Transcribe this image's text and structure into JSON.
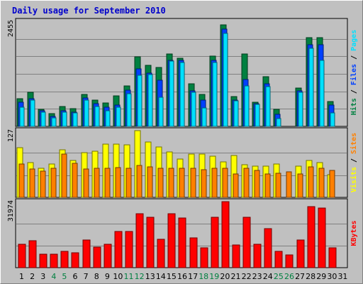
{
  "colors": {
    "background": "#C0C0C0",
    "title": "#0000CC",
    "hits": "#008040",
    "files": "#0040FF",
    "pages": "#00E0FF",
    "visits": "#FFFF00",
    "sites": "#FF8000",
    "kbytes": "#FF0000",
    "weekday_label": "#000000",
    "weekend_label": "#008040"
  },
  "chart_data": {
    "type": "bar",
    "title": "Daily usage for September 2010",
    "days": [
      "1",
      "2",
      "3",
      "4",
      "5",
      "6",
      "7",
      "8",
      "9",
      "10",
      "11",
      "12",
      "13",
      "14",
      "15",
      "16",
      "17",
      "18",
      "19",
      "20",
      "21",
      "22",
      "23",
      "24",
      "25",
      "26",
      "27",
      "28",
      "29",
      "30",
      "31"
    ],
    "weekend_days": [
      "4",
      "5",
      "11",
      "12",
      "18",
      "19",
      "25",
      "26"
    ],
    "panels": [
      {
        "name": "hits-files-pages",
        "ymax_label": "2455",
        "ymax": 2455,
        "legend": [
          {
            "text": "Hits",
            "color_key": "hits"
          },
          {
            "text": " / ",
            "color_key": "weekday_label"
          },
          {
            "text": "Files",
            "color_key": "files"
          },
          {
            "text": " / ",
            "color_key": "weekday_label"
          },
          {
            "text": "Pages",
            "color_key": "pages"
          }
        ],
        "series": [
          {
            "key": "hits",
            "values": [
              640,
              790,
              390,
              300,
              470,
              420,
              750,
              610,
              540,
              720,
              950,
              1620,
              1430,
              1380,
              1690,
              1600,
              990,
              740,
              1650,
              2380,
              690,
              1690,
              570,
              1160,
              400,
              0,
              900,
              2080,
              2070,
              580,
              0
            ]
          },
          {
            "key": "files",
            "values": [
              560,
              640,
              360,
              240,
              370,
              330,
              670,
              530,
              450,
              500,
              850,
              1340,
              1240,
              1080,
              1550,
              1540,
              830,
              610,
              1540,
              2270,
              610,
              1100,
              530,
              990,
              290,
              0,
              830,
              1900,
              1900,
              490,
              0
            ]
          },
          {
            "key": "pages",
            "values": [
              440,
              620,
              340,
              200,
              330,
              310,
              610,
              470,
              360,
              440,
              760,
              1200,
              1210,
              680,
              1530,
              1500,
              790,
              430,
              1490,
              2170,
              600,
              940,
              520,
              930,
              190,
              0,
              790,
              1820,
              1550,
              320,
              0
            ]
          }
        ]
      },
      {
        "name": "visits-sites",
        "ymax_label": "127",
        "ymax": 127,
        "legend": [
          {
            "text": "Visits",
            "color_key": "visits"
          },
          {
            "text": " / ",
            "color_key": "weekday_label"
          },
          {
            "text": "Sites",
            "color_key": "sites"
          }
        ],
        "series": [
          {
            "key": "visits",
            "values": [
              95,
              66,
              55,
              64,
              90,
              70,
              85,
              88,
              101,
              101,
              100,
              127,
              105,
              96,
              86,
              73,
              82,
              82,
              78,
              67,
              80,
              62,
              60,
              59,
              64,
              0,
              60,
              70,
              66,
              43,
              0
            ]
          },
          {
            "key": "sites",
            "values": [
              64,
              54,
              50,
              56,
              82,
              65,
              54,
              55,
              56,
              57,
              55,
              61,
              58,
              56,
              56,
              56,
              55,
              53,
              56,
              55,
              45,
              56,
              52,
              45,
              46,
              49,
              45,
              58,
              56,
              52,
              0
            ]
          }
        ]
      },
      {
        "name": "kbytes",
        "ymax_label": "31974",
        "ymax": 31974,
        "legend": [
          {
            "text": "KBytes",
            "color_key": "kbytes"
          }
        ],
        "series": [
          {
            "key": "kbytes",
            "values": [
              11400,
              12900,
              6600,
              6500,
              8000,
              7300,
              13300,
              10000,
              11200,
              17500,
              17400,
              26100,
              24400,
              13600,
              26100,
              24100,
              14600,
              9600,
              24400,
              31974,
              11000,
              24500,
              11200,
              18900,
              7900,
              6100,
              13400,
              29700,
              28800,
              9700,
              0
            ]
          }
        ]
      }
    ]
  }
}
